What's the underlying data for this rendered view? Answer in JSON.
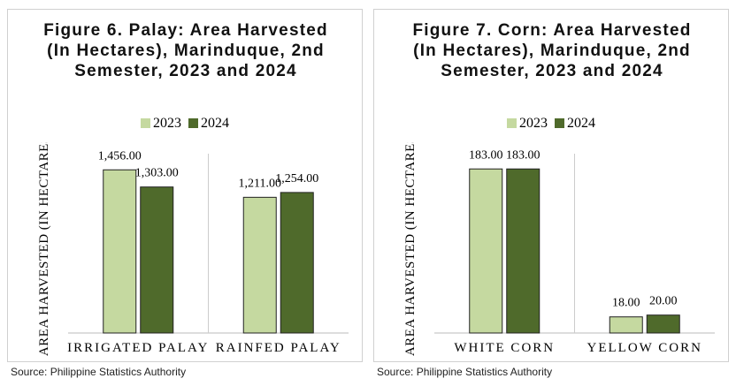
{
  "chart_data": [
    {
      "type": "bar",
      "title": "Figure 6. Palay: Area Harvested (In Hectares), Marinduque, 2nd Semester, 2023 and 2024",
      "y_label": "AREA HARVESTED (IN HECTARES)",
      "categories": [
        "IRRIGATED PALAY",
        "RAINFED PALAY"
      ],
      "series": [
        {
          "name": "2023",
          "color": "#c5d9a0",
          "values": [
            1456,
            1211
          ],
          "value_labels": [
            "1,456.00",
            "1,211.00"
          ]
        },
        {
          "name": "2024",
          "color": "#4f6a2b",
          "values": [
            1303,
            1254
          ],
          "value_labels": [
            "1,303.00",
            "1,254.00"
          ]
        }
      ],
      "ylim": [
        0,
        1600
      ],
      "source": "Source: Philippine Statistics Authority"
    },
    {
      "type": "bar",
      "title": "Figure 7. Corn: Area Harvested (In Hectares), Marinduque, 2nd Semester, 2023 and 2024",
      "y_label": "AREA HARVESTED (IN HECTARES)",
      "categories": [
        "WHITE CORN",
        "YELLOW CORN"
      ],
      "series": [
        {
          "name": "2023",
          "color": "#c5d9a0",
          "values": [
            183,
            18
          ],
          "value_labels": [
            "183.00",
            "18.00"
          ]
        },
        {
          "name": "2024",
          "color": "#4f6a2b",
          "values": [
            183,
            20
          ],
          "value_labels": [
            "183.00",
            "20.00"
          ]
        }
      ],
      "ylim": [
        0,
        200
      ],
      "source": "Source: Philippine Statistics Authority"
    }
  ]
}
